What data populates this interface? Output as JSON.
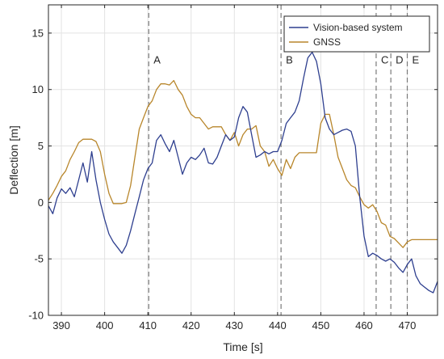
{
  "chart_data": {
    "type": "line",
    "xlabel": "Time [s]",
    "ylabel": "Deflection [m]",
    "xlim": [
      387,
      477
    ],
    "ylim": [
      -10,
      17.5
    ],
    "xticks": [
      390,
      400,
      410,
      420,
      430,
      440,
      450,
      460,
      470
    ],
    "yticks": [
      -10,
      -5,
      0,
      5,
      10,
      15
    ],
    "grid": true,
    "legend_position": "top-right",
    "events": [
      {
        "label": "A",
        "x": 410.2
      },
      {
        "label": "B",
        "x": 440.8
      },
      {
        "label": "C",
        "x": 462.8
      },
      {
        "label": "D",
        "x": 466.2
      },
      {
        "label": "E",
        "x": 470.0
      }
    ],
    "series": [
      {
        "name": "Vision-based system",
        "color": "#2e3f8f",
        "x": [
          387,
          388,
          389,
          390,
          391,
          392,
          393,
          394,
          395,
          396,
          397,
          398,
          399,
          400,
          401,
          402,
          403,
          404,
          405,
          406,
          407,
          408,
          409,
          410,
          411,
          412,
          413,
          414,
          415,
          416,
          417,
          418,
          419,
          420,
          421,
          422,
          423,
          424,
          425,
          426,
          427,
          428,
          429,
          430,
          431,
          432,
          433,
          434,
          435,
          436,
          437,
          438,
          439,
          440,
          441,
          442,
          443,
          444,
          445,
          446,
          447,
          448,
          449,
          450,
          451,
          452,
          453,
          454,
          455,
          456,
          457,
          458,
          459,
          460,
          461,
          462,
          463,
          464,
          465,
          466,
          467,
          468,
          469,
          470,
          471,
          472,
          473,
          474,
          475,
          476,
          477
        ],
        "y": [
          -0.3,
          -1.0,
          0.4,
          1.2,
          0.8,
          1.3,
          0.5,
          2.0,
          3.5,
          1.8,
          4.5,
          2.0,
          0.0,
          -1.5,
          -2.8,
          -3.5,
          -4.0,
          -4.5,
          -3.8,
          -2.5,
          -1.0,
          0.5,
          2.0,
          3.0,
          3.5,
          5.5,
          6.0,
          5.2,
          4.5,
          5.5,
          4.0,
          2.5,
          3.5,
          4.0,
          3.8,
          4.2,
          4.8,
          3.5,
          3.4,
          4.0,
          5.0,
          6.0,
          5.5,
          5.8,
          7.5,
          8.5,
          8.0,
          6.0,
          4.0,
          4.2,
          4.5,
          4.3,
          4.5,
          4.5,
          5.5,
          7.0,
          7.5,
          8.0,
          9.0,
          11.0,
          12.8,
          13.3,
          12.5,
          10.5,
          7.5,
          6.5,
          6.0,
          6.2,
          6.4,
          6.5,
          6.3,
          5.0,
          0.5,
          -3.0,
          -4.8,
          -4.5,
          -4.7,
          -5.0,
          -5.2,
          -5.0,
          -5.3,
          -5.8,
          -6.2,
          -5.5,
          -5.0,
          -6.5,
          -7.2,
          -7.5,
          -7.8,
          -8.0,
          -7.0
        ]
      },
      {
        "name": "GNSS",
        "color": "#b8862b",
        "x": [
          387,
          388,
          389,
          390,
          391,
          392,
          393,
          394,
          395,
          396,
          397,
          398,
          399,
          400,
          401,
          402,
          403,
          404,
          405,
          406,
          407,
          408,
          409,
          410,
          411,
          412,
          413,
          414,
          415,
          416,
          417,
          418,
          419,
          420,
          421,
          422,
          423,
          424,
          425,
          426,
          427,
          428,
          429,
          430,
          431,
          432,
          433,
          434,
          435,
          436,
          437,
          438,
          439,
          440,
          441,
          442,
          443,
          444,
          445,
          446,
          447,
          448,
          449,
          450,
          451,
          452,
          453,
          454,
          455,
          456,
          457,
          458,
          459,
          460,
          461,
          462,
          463,
          464,
          465,
          466,
          467,
          468,
          469,
          470,
          471,
          472,
          473,
          474,
          475,
          476,
          477
        ],
        "y": [
          0.2,
          0.8,
          1.5,
          2.3,
          2.8,
          3.8,
          4.5,
          5.3,
          5.6,
          5.6,
          5.6,
          5.4,
          4.5,
          2.5,
          0.8,
          -0.1,
          -0.1,
          -0.1,
          0.0,
          1.5,
          4.0,
          6.5,
          7.5,
          8.5,
          9.0,
          10.0,
          10.5,
          10.5,
          10.4,
          10.8,
          10.0,
          9.5,
          8.5,
          7.8,
          7.5,
          7.5,
          7.0,
          6.5,
          6.7,
          6.7,
          6.7,
          6.0,
          5.5,
          6.2,
          5.0,
          6.0,
          6.5,
          6.5,
          6.8,
          5.0,
          4.5,
          3.2,
          3.8,
          3.0,
          2.4,
          3.8,
          3.0,
          4.0,
          4.4,
          4.4,
          4.4,
          4.4,
          4.4,
          7.0,
          7.8,
          7.8,
          6.0,
          4.0,
          3.0,
          2.0,
          1.5,
          1.3,
          0.5,
          -0.2,
          -0.5,
          -0.2,
          -0.8,
          -1.8,
          -2.0,
          -3.0,
          -3.2,
          -3.6,
          -4.0,
          -3.5,
          -3.3,
          -3.3,
          -3.3,
          -3.3,
          -3.3,
          -3.3,
          -3.3
        ]
      }
    ]
  }
}
